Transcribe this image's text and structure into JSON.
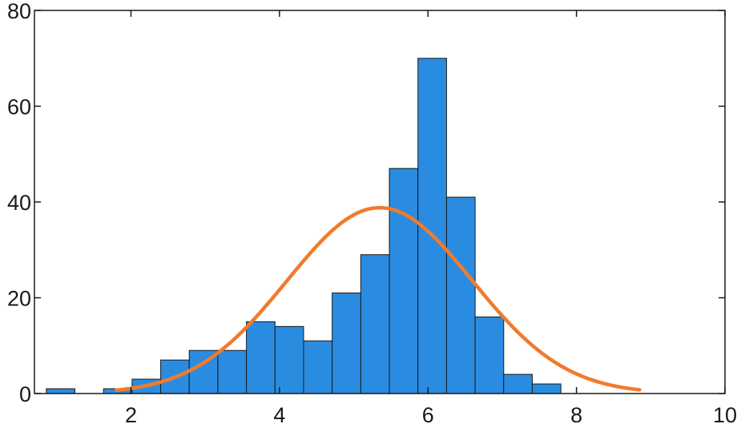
{
  "chart_data": {
    "type": "bar",
    "title": "",
    "xlabel": "",
    "ylabel": "",
    "xlim": [
      0.7,
      10
    ],
    "ylim": [
      0,
      80
    ],
    "xticks": [
      2,
      4,
      6,
      8,
      10
    ],
    "yticks": [
      0,
      20,
      40,
      60,
      80
    ],
    "xtick_labels": [
      "2",
      "4",
      "6",
      "8",
      "10"
    ],
    "ytick_labels": [
      "0",
      "20",
      "40",
      "60",
      "80"
    ],
    "grid": false,
    "box": true,
    "bin_width": 0.385,
    "histogram": {
      "name": "",
      "color": "#2a8ce0",
      "edge_color": "#1a1a1a",
      "bins": [
        {
          "x0": 0.86,
          "x1": 1.245,
          "count": 1
        },
        {
          "x0": 1.63,
          "x1": 2.015,
          "count": 1
        },
        {
          "x0": 2.015,
          "x1": 2.4,
          "count": 3
        },
        {
          "x0": 2.4,
          "x1": 2.785,
          "count": 7
        },
        {
          "x0": 2.785,
          "x1": 3.17,
          "count": 9
        },
        {
          "x0": 3.17,
          "x1": 3.555,
          "count": 9
        },
        {
          "x0": 3.555,
          "x1": 3.94,
          "count": 15
        },
        {
          "x0": 3.94,
          "x1": 4.325,
          "count": 14
        },
        {
          "x0": 4.325,
          "x1": 4.71,
          "count": 11
        },
        {
          "x0": 4.71,
          "x1": 5.095,
          "count": 21
        },
        {
          "x0": 5.095,
          "x1": 5.48,
          "count": 29
        },
        {
          "x0": 5.48,
          "x1": 5.865,
          "count": 47
        },
        {
          "x0": 5.865,
          "x1": 6.25,
          "count": 70
        },
        {
          "x0": 6.25,
          "x1": 6.635,
          "count": 41
        },
        {
          "x0": 6.635,
          "x1": 7.02,
          "count": 16
        },
        {
          "x0": 7.02,
          "x1": 7.405,
          "count": 4
        },
        {
          "x0": 7.405,
          "x1": 7.79,
          "count": 2
        }
      ]
    },
    "fit_curve": {
      "name": "",
      "type": "normal",
      "color": "#f07b2c",
      "mean": 5.35,
      "std": 1.25,
      "peak": 38.8,
      "x_range": [
        1.8,
        8.85
      ]
    }
  }
}
